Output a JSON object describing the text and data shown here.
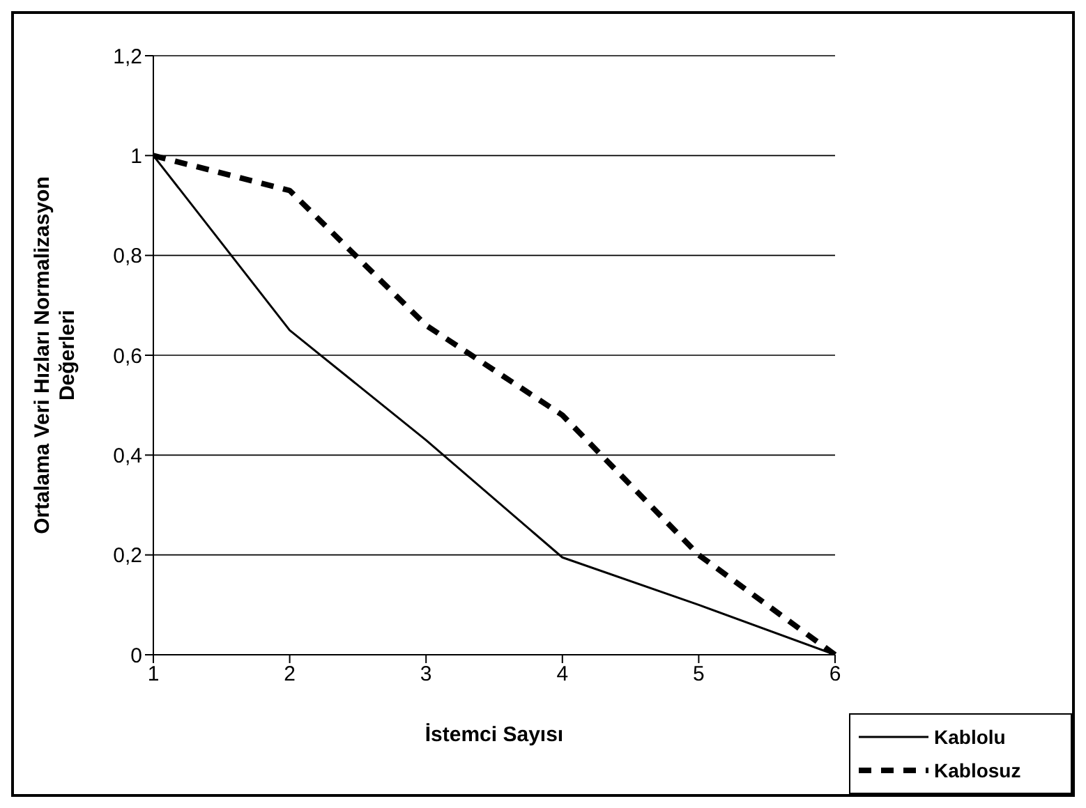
{
  "chart_data": {
    "type": "line",
    "xlabel": "İstemci Sayısı",
    "ylabel": "Ortalama Veri Hızları Normalizasyon\nDeğerleri",
    "categories": [
      "1",
      "2",
      "3",
      "4",
      "5",
      "6"
    ],
    "series": [
      {
        "name": "Kablolu",
        "color": "#000000",
        "line_style": "solid",
        "values": [
          1,
          0.65,
          0.43,
          0.195,
          0.1,
          0
        ]
      },
      {
        "name": "Kablosuz",
        "color": "#000000",
        "line_style": "dashed",
        "values": [
          1,
          0.93,
          0.66,
          0.48,
          0.2,
          0
        ]
      }
    ],
    "ylim": [
      0,
      1.2
    ],
    "yticks": [
      0,
      {
        "value": 0.2,
        "label": "0,2"
      },
      {
        "value": 0.4,
        "label": "0,4"
      },
      {
        "value": 0.6,
        "label": "0,6"
      },
      {
        "value": 0.8,
        "label": "0,8"
      },
      1,
      {
        "value": 1.2,
        "label": "1,2"
      }
    ],
    "grid": "y",
    "legend": "bottom right",
    "marker": "none"
  }
}
